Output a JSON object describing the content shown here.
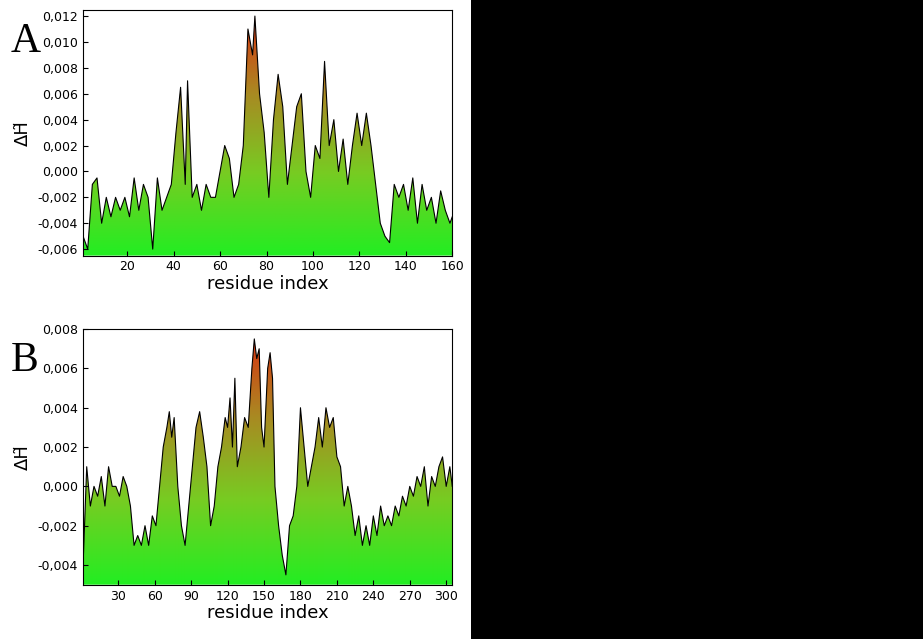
{
  "chart_data": [
    {
      "type": "area",
      "title": "A",
      "x_label": "residue index",
      "y_label": "ΔH̃",
      "x": [
        1,
        3,
        5,
        7,
        9,
        11,
        13,
        15,
        17,
        19,
        21,
        23,
        25,
        27,
        29,
        31,
        33,
        35,
        37,
        39,
        41,
        43,
        45,
        46,
        48,
        50,
        52,
        54,
        56,
        58,
        60,
        62,
        64,
        66,
        68,
        70,
        72,
        74,
        75,
        77,
        79,
        81,
        83,
        85,
        87,
        89,
        91,
        93,
        95,
        97,
        99,
        101,
        103,
        105,
        107,
        109,
        111,
        113,
        115,
        117,
        119,
        121,
        123,
        125,
        127,
        129,
        131,
        133,
        135,
        137,
        139,
        141,
        143,
        145,
        147,
        149,
        151,
        153,
        155,
        157,
        159,
        160
      ],
      "values": [
        -0.005,
        -0.006,
        -0.001,
        -0.0005,
        -0.004,
        -0.002,
        -0.0035,
        -0.002,
        -0.003,
        -0.002,
        -0.0035,
        -0.0005,
        -0.003,
        -0.001,
        -0.002,
        -0.006,
        -0.0005,
        -0.003,
        -0.002,
        -0.001,
        0.003,
        0.0065,
        -0.001,
        0.007,
        -0.002,
        -0.001,
        -0.003,
        -0.001,
        -0.002,
        -0.002,
        0.0,
        0.002,
        0.001,
        -0.002,
        -0.001,
        0.002,
        0.011,
        0.009,
        0.012,
        0.006,
        0.003,
        -0.002,
        0.004,
        0.0075,
        0.005,
        -0.001,
        0.002,
        0.005,
        0.006,
        0.0,
        -0.002,
        0.002,
        0.001,
        0.0085,
        0.002,
        0.004,
        0.0,
        0.0025,
        -0.001,
        0.002,
        0.0045,
        0.002,
        0.0045,
        0.002,
        -0.001,
        -0.004,
        -0.005,
        -0.0055,
        -0.001,
        -0.002,
        -0.001,
        -0.003,
        -0.0005,
        -0.004,
        -0.001,
        -0.003,
        -0.002,
        -0.004,
        -0.0015,
        -0.003,
        -0.004,
        -0.0035
      ],
      "xlim": [
        1,
        160
      ],
      "xticks": [
        20,
        40,
        60,
        80,
        100,
        120,
        140,
        160
      ],
      "ylim": [
        -0.0065,
        0.0125
      ],
      "yticks": [
        {
          "value": -0.006,
          "label": "-0,006"
        },
        {
          "value": -0.004,
          "label": "-0,004"
        },
        {
          "value": -0.002,
          "label": "-0,002"
        },
        {
          "value": 0.0,
          "label": "0,000"
        },
        {
          "value": 0.002,
          "label": "0,002"
        },
        {
          "value": 0.004,
          "label": "0,004"
        },
        {
          "value": 0.006,
          "label": "0,006"
        },
        {
          "value": 0.008,
          "label": "0,008"
        },
        {
          "value": 0.01,
          "label": "0,010"
        },
        {
          "value": 0.012,
          "label": "0,012"
        }
      ],
      "grid": false
    },
    {
      "type": "area",
      "title": "B",
      "x_label": "residue index",
      "y_label": "ΔH̃",
      "x": [
        1,
        4,
        7,
        10,
        13,
        16,
        19,
        22,
        25,
        28,
        31,
        34,
        37,
        40,
        43,
        46,
        49,
        52,
        55,
        58,
        61,
        64,
        67,
        70,
        72,
        74,
        76,
        79,
        82,
        85,
        88,
        91,
        94,
        97,
        100,
        103,
        106,
        109,
        112,
        115,
        118,
        120,
        122,
        124,
        126,
        128,
        131,
        134,
        137,
        140,
        142,
        144,
        146,
        148,
        150,
        153,
        155,
        157,
        159,
        162,
        165,
        168,
        171,
        174,
        177,
        180,
        183,
        186,
        189,
        192,
        195,
        198,
        201,
        204,
        207,
        210,
        213,
        216,
        219,
        222,
        225,
        228,
        231,
        234,
        237,
        240,
        243,
        246,
        249,
        252,
        255,
        258,
        261,
        264,
        267,
        270,
        273,
        276,
        279,
        282,
        285,
        288,
        291,
        294,
        297,
        300,
        303,
        305
      ],
      "values": [
        -0.004,
        0.001,
        -0.001,
        0.0,
        -0.0005,
        0.0005,
        -0.001,
        0.001,
        0.0,
        0.0,
        -0.0005,
        0.0005,
        0.0,
        -0.001,
        -0.003,
        -0.0025,
        -0.003,
        -0.002,
        -0.003,
        -0.0015,
        -0.002,
        0.0,
        0.002,
        0.003,
        0.0038,
        0.0025,
        0.0035,
        0.0,
        -0.002,
        -0.003,
        -0.001,
        0.001,
        0.003,
        0.0038,
        0.0025,
        0.001,
        -0.002,
        -0.001,
        0.001,
        0.002,
        0.0035,
        0.003,
        0.0045,
        0.002,
        0.0055,
        0.001,
        0.002,
        0.0035,
        0.003,
        0.006,
        0.0075,
        0.0065,
        0.007,
        0.003,
        0.002,
        0.006,
        0.0068,
        0.0055,
        0.0,
        -0.002,
        -0.0035,
        -0.0045,
        -0.002,
        -0.0015,
        0.0,
        0.004,
        0.002,
        0.0,
        0.001,
        0.002,
        0.0035,
        0.002,
        0.004,
        0.003,
        0.0035,
        0.0015,
        0.001,
        -0.001,
        0.0,
        -0.001,
        -0.0025,
        -0.0015,
        -0.003,
        -0.002,
        -0.003,
        -0.0015,
        -0.0025,
        -0.001,
        -0.002,
        -0.0015,
        -0.002,
        -0.001,
        -0.0015,
        -0.0005,
        -0.001,
        0.0,
        -0.0005,
        0.0005,
        0.0,
        0.001,
        -0.001,
        0.0005,
        0.0,
        0.001,
        0.0015,
        0.0,
        0.001,
        0.0
      ],
      "xlim": [
        1,
        305
      ],
      "xticks": [
        30,
        60,
        90,
        120,
        150,
        180,
        210,
        240,
        270,
        300
      ],
      "ylim": [
        -0.005,
        0.008
      ],
      "yticks": [
        {
          "value": -0.004,
          "label": "-0,004"
        },
        {
          "value": -0.002,
          "label": "-0,002"
        },
        {
          "value": 0.0,
          "label": "0,000"
        },
        {
          "value": 0.002,
          "label": "0,002"
        },
        {
          "value": 0.004,
          "label": "0,004"
        },
        {
          "value": 0.006,
          "label": "0,006"
        },
        {
          "value": 0.008,
          "label": "0,008"
        }
      ],
      "grid": false
    }
  ]
}
